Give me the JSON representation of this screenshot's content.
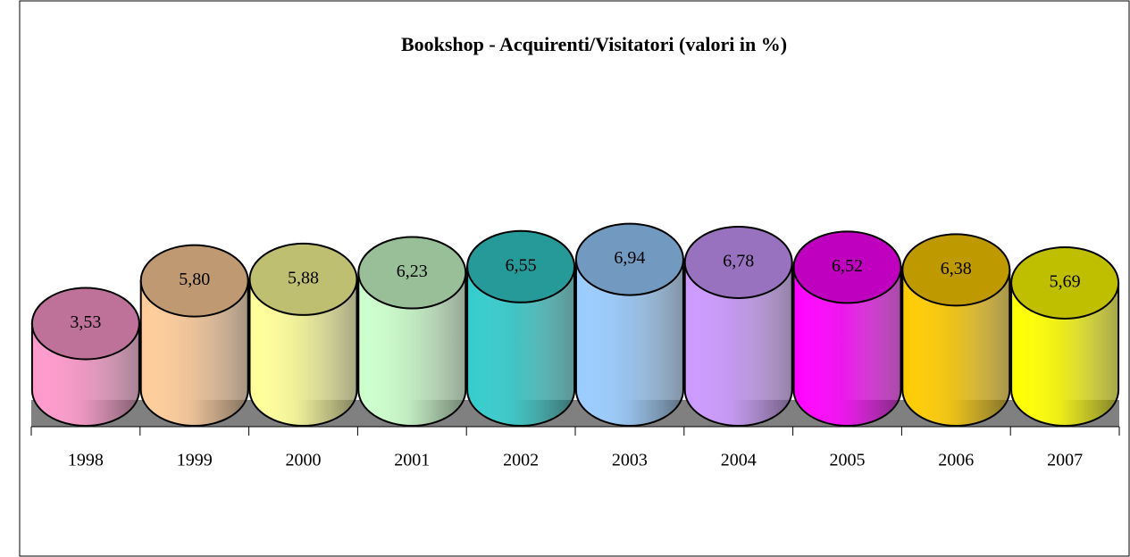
{
  "chart_data": {
    "type": "cylinder",
    "title": "Bookshop - Acquirenti/Visitatori (valori in %)",
    "categories": [
      "1998",
      "1999",
      "2000",
      "2001",
      "2002",
      "2003",
      "2004",
      "2005",
      "2006",
      "2007"
    ],
    "values": [
      3.53,
      5.8,
      5.88,
      6.23,
      6.55,
      6.94,
      6.78,
      6.52,
      6.38,
      5.69
    ],
    "value_labels": [
      "3,53",
      "5,80",
      "5,88",
      "6,23",
      "6,55",
      "6,94",
      "6,78",
      "6,52",
      "6,38",
      "5,69"
    ],
    "colors": [
      "#ff99cc",
      "#ffcc99",
      "#ffff99",
      "#ccffcc",
      "#33cccc",
      "#99ccff",
      "#cc99ff",
      "#ff00ff",
      "#ffcc00",
      "#ffff00"
    ]
  }
}
